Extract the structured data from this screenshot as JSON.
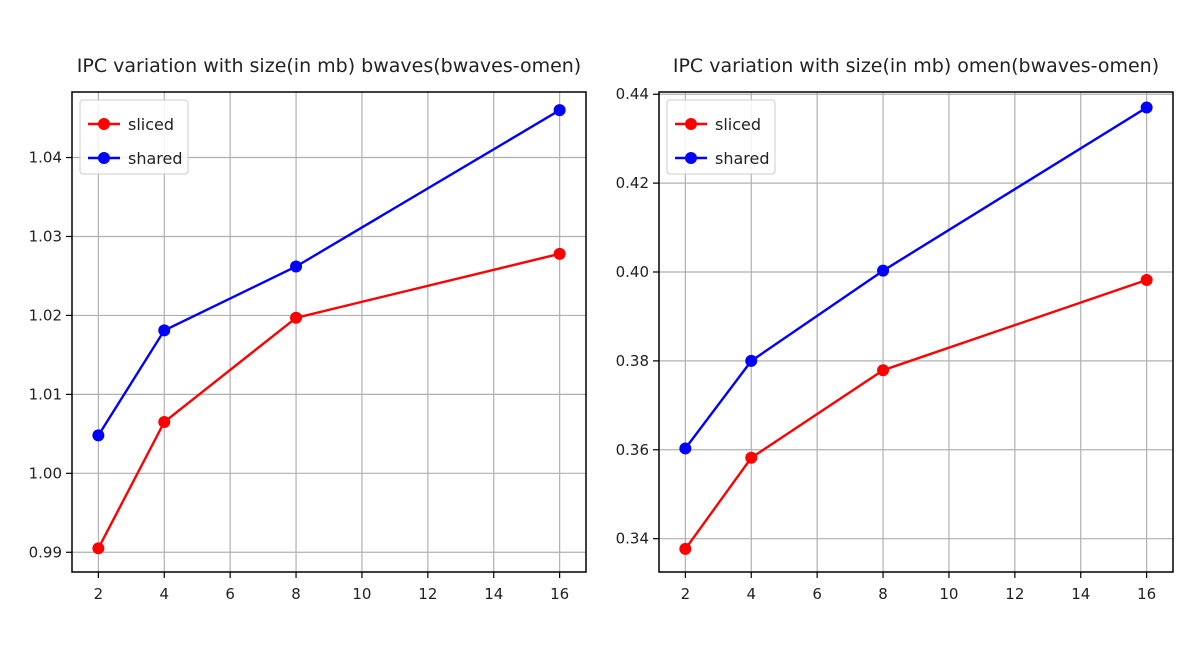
{
  "chart_data": [
    {
      "type": "line",
      "title": "IPC variation with size(in mb) bwaves(bwaves-omen)",
      "xlabel": "",
      "ylabel": "",
      "x": [
        2,
        4,
        8,
        16
      ],
      "series": [
        {
          "name": "sliced",
          "color": "#ff0000",
          "values": [
            0.9905,
            1.0065,
            1.0197,
            1.0278
          ]
        },
        {
          "name": "shared",
          "color": "#0000ff",
          "values": [
            1.0048,
            1.0181,
            1.0262,
            1.046
          ]
        }
      ],
      "xlim": [
        1.2,
        16.8
      ],
      "ylim": [
        0.9875,
        1.0483
      ],
      "xticks": [
        2,
        4,
        6,
        8,
        10,
        12,
        14,
        16
      ],
      "xtick_labels": [
        "2",
        "4",
        "6",
        "8",
        "10",
        "12",
        "14",
        "16"
      ],
      "yticks": [
        0.99,
        1.0,
        1.01,
        1.02,
        1.03,
        1.04
      ],
      "ytick_labels": [
        "0.99",
        "1.00",
        "1.01",
        "1.02",
        "1.03",
        "1.04"
      ],
      "grid": true,
      "legend": "upper-left"
    },
    {
      "type": "line",
      "title": "IPC variation with size(in mb) omen(bwaves-omen)",
      "xlabel": "",
      "ylabel": "",
      "x": [
        2,
        4,
        8,
        16
      ],
      "series": [
        {
          "name": "sliced",
          "color": "#ff0000",
          "values": [
            0.3377,
            0.3582,
            0.3779,
            0.3982
          ]
        },
        {
          "name": "shared",
          "color": "#0000ff",
          "values": [
            0.3603,
            0.38,
            0.4003,
            0.437
          ]
        }
      ],
      "xlim": [
        1.2,
        16.8
      ],
      "ylim": [
        0.3325,
        0.4405
      ],
      "xticks": [
        2,
        4,
        6,
        8,
        10,
        12,
        14,
        16
      ],
      "xtick_labels": [
        "2",
        "4",
        "6",
        "8",
        "10",
        "12",
        "14",
        "16"
      ],
      "yticks": [
        0.34,
        0.36,
        0.38,
        0.4,
        0.42,
        0.44
      ],
      "ytick_labels": [
        "0.34",
        "0.36",
        "0.38",
        "0.40",
        "0.42",
        "0.44"
      ],
      "grid": true,
      "legend": "upper-left"
    }
  ]
}
